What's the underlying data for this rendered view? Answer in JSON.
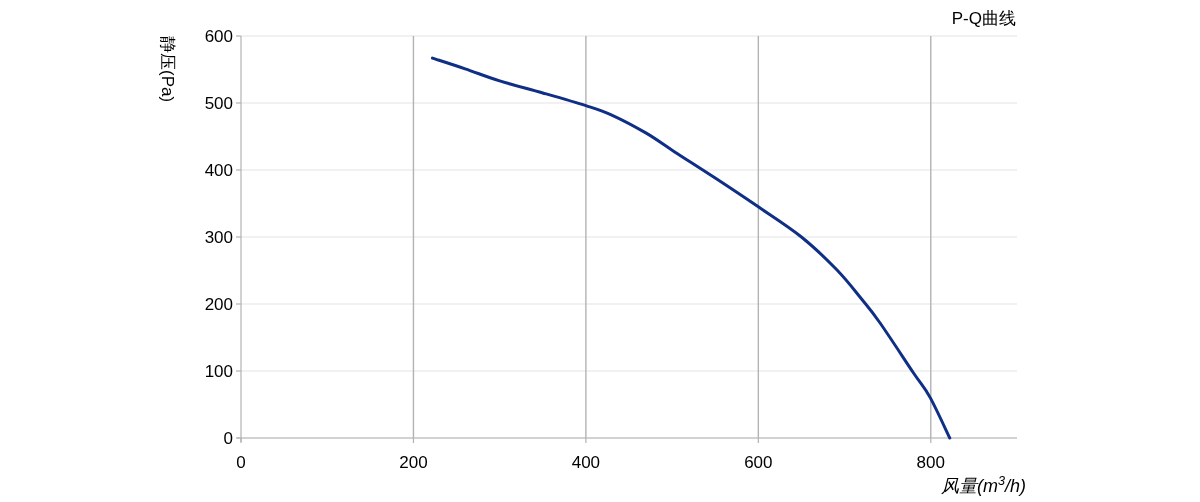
{
  "chart_data": {
    "type": "line",
    "title": "P-Q曲线",
    "xlabel": "风量(m$^{3}$/h)",
    "ylabel": "静压(Pa)",
    "series": [
      {
        "color": "#0f2f86",
        "x": [
          222,
          260,
          300,
          350,
          400,
          430,
          470,
          503,
          550,
          600,
          650,
          691,
          720,
          741,
          780,
          799,
          822
        ],
        "values": [
          567,
          551,
          533,
          515,
          496,
          482,
          455,
          427,
          388,
          345,
          300,
          251,
          207,
          172,
          97,
          61,
          0
        ]
      }
    ],
    "xlim": [
      0,
      900
    ],
    "ylim": [
      0,
      600
    ],
    "xticks": [
      0,
      200,
      400,
      600,
      800
    ],
    "yticks": [
      0,
      100,
      200,
      300,
      400,
      500,
      600
    ],
    "grid": true,
    "marker": "none",
    "line_style": "solid"
  }
}
